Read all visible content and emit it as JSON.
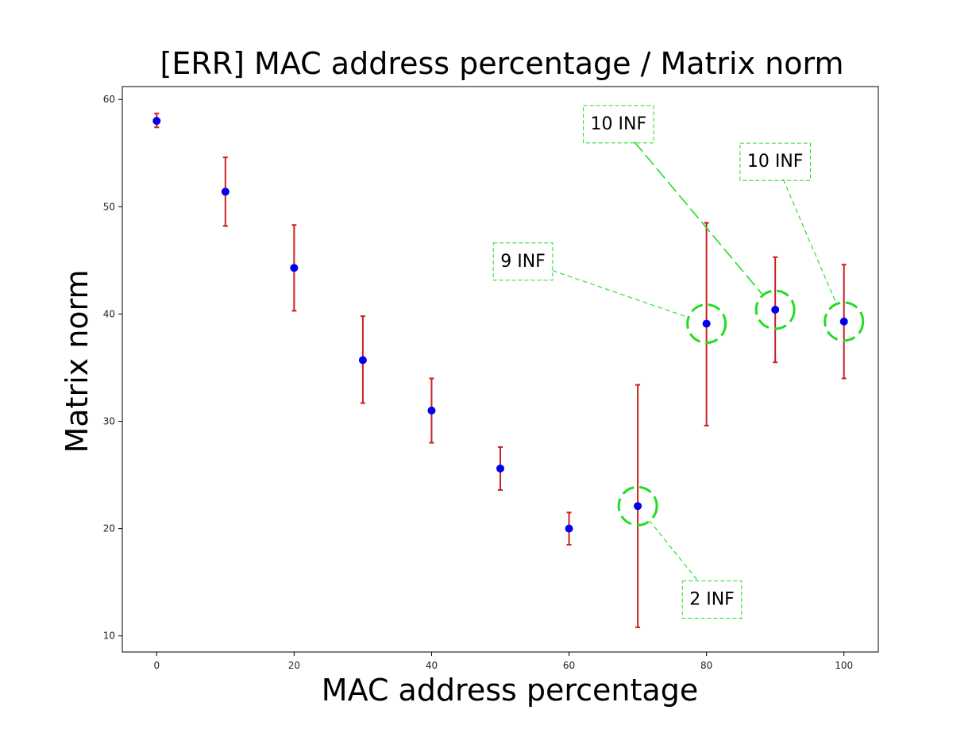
{
  "chart_data": {
    "type": "scatter",
    "title": "[ERR] MAC address percentage / Matrix norm",
    "xlabel": "MAC address percentage",
    "ylabel": "Matrix norm",
    "xlim": [
      -5,
      105
    ],
    "ylim": [
      8.5,
      61.2
    ],
    "xticks": [
      0,
      20,
      40,
      60,
      80,
      100
    ],
    "yticks": [
      10,
      20,
      30,
      40,
      50,
      60
    ],
    "grid": false,
    "colors": {
      "point": "#0000ee",
      "errorbar": "#cc1f1f",
      "annotation": "#22dd22"
    },
    "points": [
      {
        "x": 0,
        "y": 58.0,
        "err_low": 57.4,
        "err_high": 58.7
      },
      {
        "x": 10,
        "y": 51.4,
        "err_low": 48.2,
        "err_high": 54.6
      },
      {
        "x": 20,
        "y": 44.3,
        "err_low": 40.3,
        "err_high": 48.3
      },
      {
        "x": 30,
        "y": 35.7,
        "err_low": 31.7,
        "err_high": 39.8
      },
      {
        "x": 40,
        "y": 31.0,
        "err_low": 28.0,
        "err_high": 34.0
      },
      {
        "x": 50,
        "y": 25.6,
        "err_low": 23.6,
        "err_high": 27.6
      },
      {
        "x": 60,
        "y": 20.0,
        "err_low": 18.5,
        "err_high": 21.5
      },
      {
        "x": 70,
        "y": 22.1,
        "err_low": 10.8,
        "err_high": 33.4
      },
      {
        "x": 80,
        "y": 39.1,
        "err_low": 29.6,
        "err_high": 48.5
      },
      {
        "x": 90,
        "y": 40.4,
        "err_low": 35.5,
        "err_high": 45.3
      },
      {
        "x": 100,
        "y": 39.3,
        "err_low": 34.0,
        "err_high": 44.6
      }
    ],
    "annotations": [
      {
        "text": "2 INF",
        "point_x": 70,
        "label_x": 80.8,
        "label_y": 13.5
      },
      {
        "text": "9 INF",
        "point_x": 80,
        "label_x": 53.3,
        "label_y": 45.0
      },
      {
        "text": "10 INF",
        "point_x": 90,
        "label_x": 67.2,
        "label_y": 57.8
      },
      {
        "text": "10 INF",
        "point_x": 100,
        "label_x": 90.0,
        "label_y": 54.3
      }
    ]
  }
}
